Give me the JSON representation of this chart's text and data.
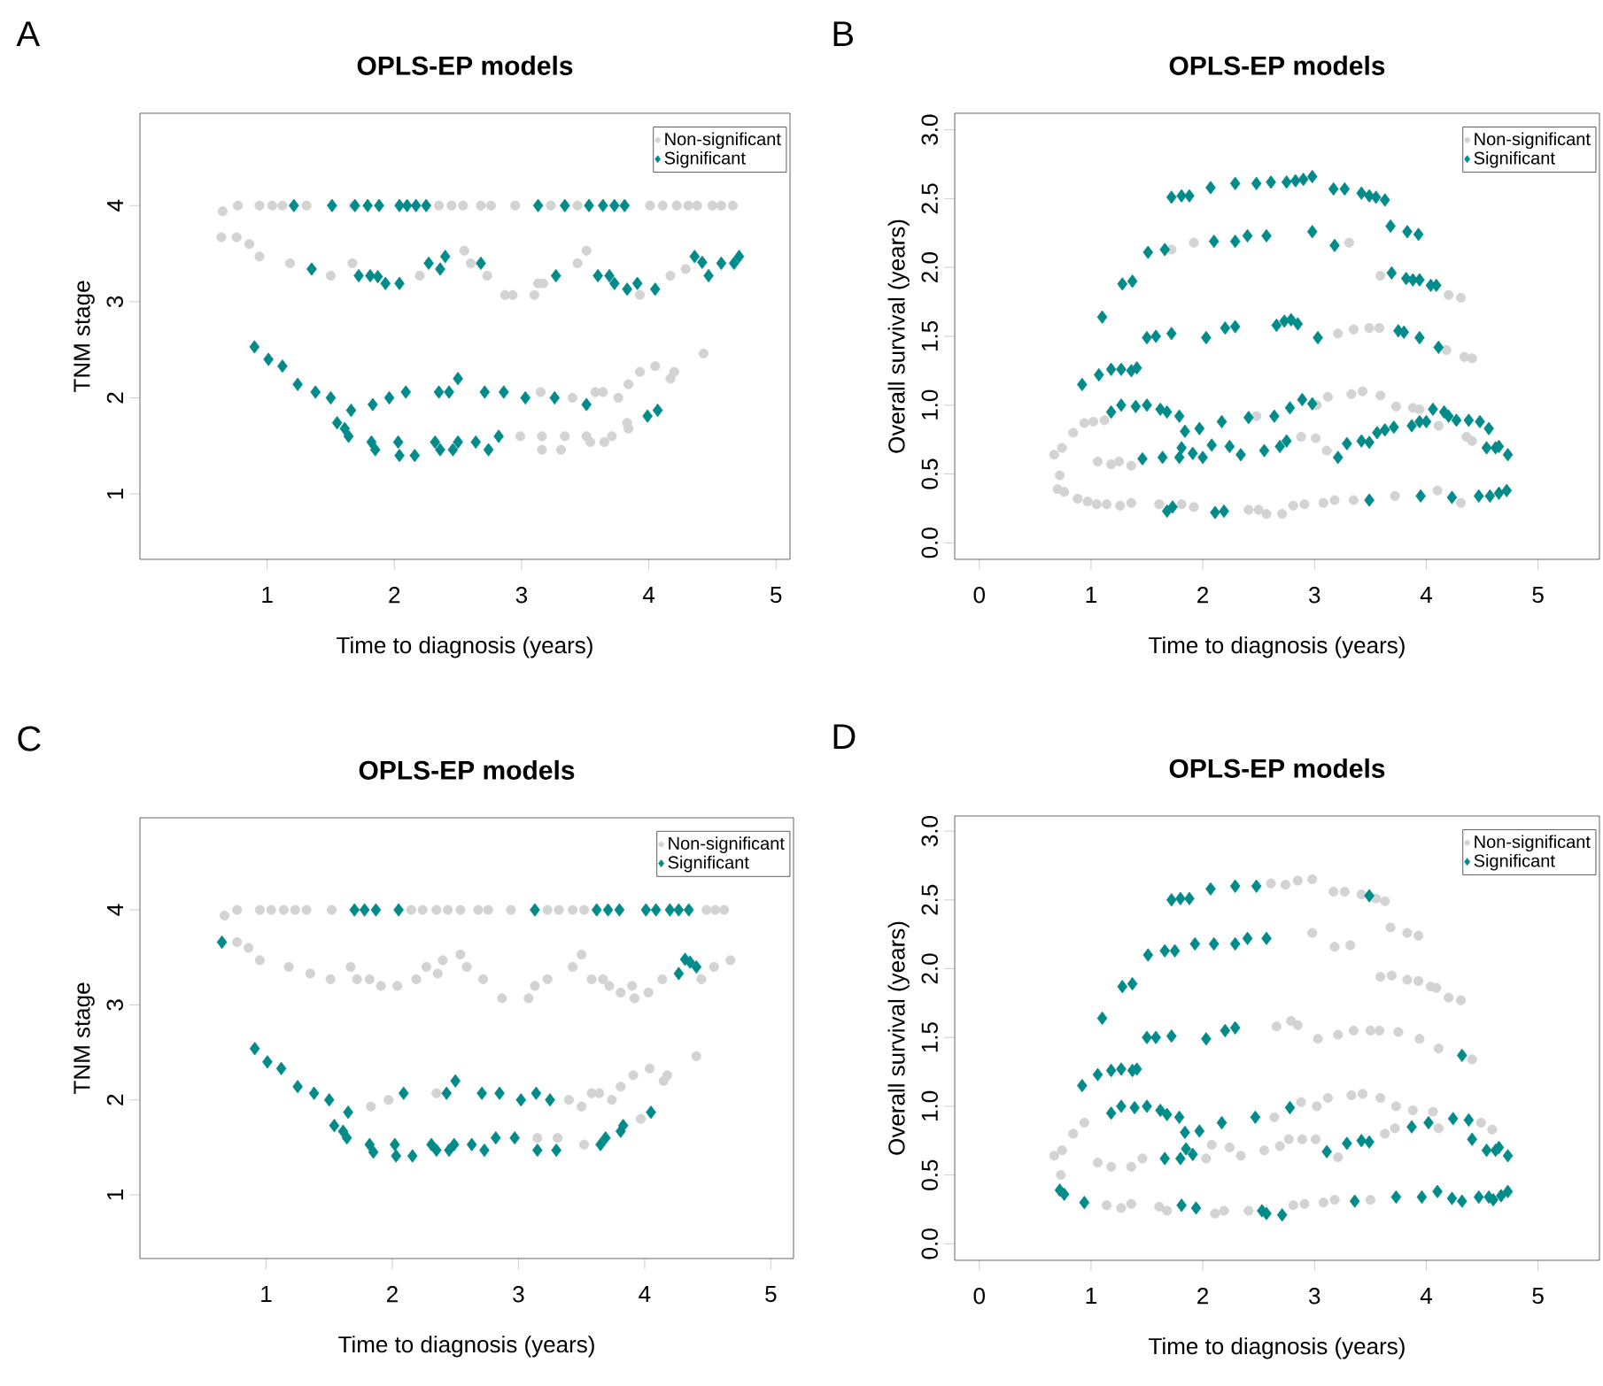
{
  "chart_data": [
    {
      "type": "scatter",
      "title": "OPLS-EP models",
      "xlabel": "Time to diagnosis (years)",
      "ylabel": "TNM stage",
      "annotations": [
        "A"
      ],
      "legend": "top right",
      "xlim": [
        0,
        5.11
      ],
      "ylim": [
        0.32,
        4.96
      ],
      "xticks": [
        1,
        2,
        3,
        4,
        5
      ],
      "yticks": [
        1,
        2,
        3,
        4
      ],
      "series": [
        {
          "name": "Non-significant",
          "color": "#d3d3d3",
          "marker": "circle",
          "x": [
            0.65,
            0.77,
            0.94,
            1.04,
            1.12,
            1.31,
            1.68,
            2.35,
            2.45,
            2.54,
            2.68,
            2.76,
            2.95,
            3.23,
            3.44,
            4.01,
            4.11,
            4.22,
            4.31,
            4.38,
            4.5,
            4.57,
            4.66,
            0.64,
            0.76,
            0.86,
            0.94,
            1.18,
            1.5,
            1.67,
            2.2,
            2.55,
            2.6,
            2.73,
            2.87,
            2.93,
            3.1,
            3.13,
            3.17,
            3.44,
            3.51,
            3.93,
            4.17,
            4.29,
            2.99,
            3.15,
            3.16,
            3.16,
            3.31,
            3.34,
            3.4,
            3.51,
            3.54,
            3.58,
            3.64,
            3.65,
            3.71,
            3.76,
            3.84,
            3.84,
            3.83,
            3.93,
            4.05,
            4.17,
            4.2,
            4.43
          ],
          "values": [
            3.94,
            4,
            4,
            4,
            4,
            4,
            4,
            4,
            4,
            4,
            4,
            4,
            4,
            4,
            4,
            4,
            4,
            4,
            4,
            4,
            4,
            4,
            4,
            3.67,
            3.67,
            3.6,
            3.47,
            3.4,
            3.27,
            3.4,
            3.27,
            3.53,
            3.4,
            3.27,
            3.07,
            3.07,
            3.07,
            3.19,
            3.19,
            3.4,
            3.53,
            3.07,
            3.27,
            3.34,
            1.6,
            2.06,
            1.6,
            1.46,
            1.46,
            1.6,
            2.0,
            1.6,
            1.54,
            2.06,
            2.06,
            1.54,
            1.6,
            2.0,
            2.14,
            1.68,
            1.74,
            2.27,
            2.33,
            2.2,
            2.27,
            2.46
          ]
        },
        {
          "name": "Significant",
          "color": "#008b8b",
          "marker": "diamond",
          "x": [
            1.21,
            1.51,
            1.69,
            1.79,
            1.88,
            2.04,
            2.1,
            2.17,
            2.25,
            3.13,
            3.34,
            3.53,
            3.64,
            3.73,
            3.81,
            1.35,
            1.72,
            1.81,
            1.87,
            1.93,
            2.04,
            2.27,
            2.36,
            2.4,
            2.68,
            3.27,
            3.6,
            3.69,
            3.73,
            3.83,
            3.91,
            4.05,
            4.36,
            4.42,
            4.47,
            4.57,
            4.67,
            4.71,
            0.9,
            1.01,
            1.12,
            1.24,
            1.38,
            1.5,
            1.55,
            1.61,
            1.64,
            1.66,
            1.82,
            1.83,
            1.85,
            1.96,
            2.03,
            2.04,
            2.09,
            2.16,
            2.32,
            2.35,
            2.36,
            2.43,
            2.46,
            2.5,
            2.5,
            2.64,
            2.71,
            2.74,
            2.82,
            2.86,
            3.03,
            3.26,
            3.51,
            3.99,
            4.07
          ],
          "values": [
            4,
            4,
            4,
            4,
            4,
            4,
            4,
            4,
            4,
            4,
            4,
            4,
            4,
            4,
            4,
            3.34,
            3.27,
            3.27,
            3.26,
            3.19,
            3.19,
            3.4,
            3.34,
            3.47,
            3.4,
            3.27,
            3.27,
            3.27,
            3.19,
            3.13,
            3.19,
            3.13,
            3.47,
            3.41,
            3.27,
            3.4,
            3.4,
            3.47,
            2.53,
            2.4,
            2.33,
            2.14,
            2.06,
            2.0,
            1.74,
            1.68,
            1.6,
            1.87,
            1.54,
            1.93,
            1.46,
            2.0,
            1.54,
            1.4,
            2.06,
            1.4,
            1.54,
            2.06,
            1.46,
            2.06,
            1.46,
            2.2,
            1.54,
            1.54,
            2.06,
            1.46,
            1.6,
            2.06,
            2.0,
            2.0,
            1.93,
            1.81,
            1.87
          ]
        }
      ]
    },
    {
      "type": "scatter",
      "title": "OPLS-EP models",
      "xlabel": "Time to diagnosis (years)",
      "ylabel": "Overall survival (years)",
      "annotations": [
        "B"
      ],
      "legend": "top right",
      "xlim": [
        -0.22,
        5.55
      ],
      "ylim": [
        -0.12,
        3.12
      ],
      "xticks": [
        0,
        1,
        2,
        3,
        4,
        5
      ],
      "yticks": [
        {
          "value": 0,
          "label": "0.0"
        },
        {
          "value": 0.5,
          "label": "0.5"
        },
        {
          "value": 1,
          "label": "1.0"
        },
        {
          "value": 1.5,
          "label": "1.5"
        },
        {
          "value": 2,
          "label": "2.0"
        },
        {
          "value": 2.5,
          "label": "2.5"
        },
        {
          "value": 3,
          "label": "3.0"
        }
      ],
      "series": [
        {
          "name": "Non-significant",
          "color": "#d3d3d3",
          "marker": "circle",
          "x": [
            1.72,
            1.92,
            3.31,
            3.59,
            4.2,
            4.31,
            3.21,
            3.35,
            3.49,
            3.58,
            4.18,
            4.34,
            4.41,
            0.67,
            0.74,
            0.72,
            0.7,
            0.76,
            0.84,
            0.94,
            1.02,
            1.12,
            1.06,
            1.18,
            1.25,
            1.36,
            0.88,
            0.97,
            1.05,
            1.14,
            1.26,
            1.36,
            1.61,
            1.81,
            1.92,
            2.41,
            2.5,
            2.57,
            2.71,
            2.81,
            2.91,
            3.08,
            3.18,
            3.35,
            3.72,
            4.1,
            4.31,
            2.48,
            2.88,
            3.01,
            3.02,
            3.11,
            3.12,
            3.33,
            3.43,
            3.59,
            3.73,
            3.88,
            3.94,
            4.11,
            4.36,
            4.41
          ],
          "values": [
            2.13,
            2.18,
            2.18,
            1.94,
            1.8,
            1.78,
            1.52,
            1.55,
            1.56,
            1.56,
            1.4,
            1.35,
            1.34,
            0.64,
            0.69,
            0.49,
            0.39,
            0.37,
            0.8,
            0.87,
            0.88,
            0.89,
            0.59,
            0.57,
            0.59,
            0.56,
            0.32,
            0.3,
            0.28,
            0.28,
            0.27,
            0.29,
            0.28,
            0.28,
            0.26,
            0.24,
            0.24,
            0.21,
            0.21,
            0.27,
            0.28,
            0.29,
            0.31,
            0.31,
            0.34,
            0.38,
            0.29,
            0.92,
            0.77,
            0.76,
            1.0,
            0.67,
            1.06,
            1.08,
            1.1,
            1.07,
            0.99,
            0.98,
            0.97,
            0.85,
            0.77,
            0.74
          ]
        },
        {
          "name": "Significant",
          "color": "#008b8b",
          "marker": "diamond",
          "x": [
            1.72,
            1.81,
            1.88,
            2.07,
            2.29,
            2.48,
            2.61,
            2.75,
            2.83,
            2.9,
            2.98,
            3.17,
            3.27,
            3.42,
            3.49,
            3.55,
            3.63,
            3.68,
            3.83,
            3.93,
            1.1,
            1.28,
            1.37,
            1.51,
            1.66,
            2.1,
            2.29,
            2.4,
            2.57,
            2.98,
            3.18,
            3.69,
            3.82,
            3.88,
            3.94,
            4.04,
            4.09,
            0.92,
            1.07,
            1.18,
            1.27,
            1.36,
            1.41,
            1.5,
            1.58,
            1.72,
            2.03,
            2.2,
            2.29,
            2.66,
            2.73,
            2.79,
            2.85,
            3.03,
            3.75,
            3.8,
            3.94,
            4.11,
            1.18,
            1.27,
            1.4,
            1.5,
            1.62,
            1.68,
            1.79,
            1.84,
            1.97,
            2.17,
            2.41,
            2.64,
            2.78,
            2.89,
            2.98,
            1.46,
            1.64,
            1.79,
            1.81,
            1.91,
            2.0,
            2.08,
            2.24,
            2.34,
            2.55,
            2.69,
            2.75,
            3.21,
            3.29,
            3.42,
            3.49,
            3.56,
            3.63,
            3.71,
            3.87,
            3.94,
            4.0,
            4.06,
            4.16,
            4.2,
            4.27,
            4.38,
            4.48,
            4.56,
            4.54,
            4.62,
            4.65,
            4.73,
            1.68,
            1.73,
            2.11,
            2.19,
            3.49,
            3.95,
            4.23,
            4.47,
            4.57,
            4.65,
            4.72
          ],
          "values": [
            2.51,
            2.52,
            2.52,
            2.58,
            2.61,
            2.61,
            2.62,
            2.62,
            2.63,
            2.64,
            2.66,
            2.57,
            2.57,
            2.54,
            2.52,
            2.51,
            2.49,
            2.3,
            2.26,
            2.24,
            1.64,
            1.88,
            1.9,
            2.11,
            2.13,
            2.19,
            2.19,
            2.23,
            2.23,
            2.26,
            2.16,
            1.96,
            1.92,
            1.91,
            1.91,
            1.87,
            1.87,
            1.15,
            1.22,
            1.26,
            1.26,
            1.25,
            1.27,
            1.49,
            1.5,
            1.52,
            1.49,
            1.56,
            1.57,
            1.58,
            1.61,
            1.62,
            1.59,
            1.49,
            1.54,
            1.53,
            1.49,
            1.42,
            0.95,
            1.0,
            0.99,
            1.0,
            0.97,
            0.95,
            0.92,
            0.81,
            0.83,
            0.88,
            0.91,
            0.92,
            0.98,
            1.04,
            1.01,
            0.61,
            0.62,
            0.62,
            0.69,
            0.65,
            0.62,
            0.71,
            0.7,
            0.64,
            0.67,
            0.7,
            0.74,
            0.62,
            0.72,
            0.74,
            0.73,
            0.8,
            0.82,
            0.84,
            0.85,
            0.88,
            0.88,
            0.97,
            0.95,
            0.92,
            0.89,
            0.89,
            0.88,
            0.83,
            0.69,
            0.69,
            0.7,
            0.64,
            0.23,
            0.26,
            0.22,
            0.23,
            0.31,
            0.34,
            0.33,
            0.34,
            0.34,
            0.36,
            0.38
          ]
        }
      ]
    },
    {
      "type": "scatter",
      "title": "OPLS-EP models",
      "xlabel": "Time to diagnosis (years)",
      "ylabel": "TNM stage",
      "annotations": [
        "C"
      ],
      "legend": "top right",
      "xlim": [
        0,
        5.18
      ],
      "ylim": [
        0.33,
        4.97
      ],
      "xticks": [
        1,
        2,
        3,
        4,
        5
      ],
      "yticks": [
        1,
        2,
        3,
        4
      ],
      "series": [
        {
          "name": "Non-significant",
          "color": "#d3d3d3",
          "marker": "circle",
          "x": [
            0.67,
            0.77,
            0.95,
            1.04,
            1.14,
            1.23,
            1.32,
            1.52,
            2.15,
            2.24,
            2.35,
            2.44,
            2.54,
            2.68,
            2.76,
            2.94,
            3.23,
            3.32,
            3.43,
            3.52,
            4.49,
            4.56,
            4.63,
            0.77,
            0.86,
            0.95,
            1.18,
            1.35,
            1.51,
            1.67,
            1.72,
            1.82,
            1.91,
            2.04,
            2.19,
            2.27,
            2.36,
            2.4,
            2.54,
            2.59,
            2.72,
            2.87,
            3.08,
            3.13,
            3.23,
            3.43,
            3.5,
            3.58,
            3.67,
            3.72,
            3.81,
            3.9,
            3.92,
            4.03,
            4.14,
            4.45,
            4.55,
            4.68,
            1.83,
            1.97,
            2.35,
            3.15,
            3.31,
            3.4,
            3.5,
            3.52,
            3.58,
            3.64,
            3.74,
            3.81,
            3.91,
            3.97,
            4.04,
            4.15,
            4.18,
            4.41
          ],
          "values": [
            3.94,
            4,
            4,
            4,
            4,
            4,
            4,
            4,
            4,
            4,
            4,
            4,
            4,
            4,
            4,
            4,
            4,
            4,
            4,
            4,
            4,
            4,
            4,
            3.66,
            3.6,
            3.47,
            3.4,
            3.33,
            3.27,
            3.4,
            3.27,
            3.27,
            3.2,
            3.2,
            3.27,
            3.4,
            3.33,
            3.47,
            3.53,
            3.4,
            3.27,
            3.07,
            3.07,
            3.2,
            3.27,
            3.4,
            3.53,
            3.27,
            3.27,
            3.2,
            3.13,
            3.2,
            3.07,
            3.13,
            3.27,
            3.27,
            3.4,
            3.47,
            1.93,
            2.0,
            2.07,
            1.6,
            1.6,
            2.0,
            1.93,
            1.53,
            2.07,
            2.07,
            2.0,
            2.14,
            2.26,
            1.8,
            2.33,
            2.2,
            2.26,
            2.46
          ]
        },
        {
          "name": "Significant",
          "color": "#008b8b",
          "marker": "diamond",
          "x": [
            1.7,
            1.78,
            1.87,
            2.05,
            3.13,
            3.62,
            3.71,
            3.8,
            4.01,
            4.09,
            4.2,
            4.27,
            4.35,
            0.65,
            4.27,
            4.32,
            4.36,
            4.41,
            0.91,
            1.01,
            1.12,
            1.25,
            1.38,
            1.5,
            1.54,
            1.61,
            1.64,
            1.65,
            1.82,
            1.85,
            2.02,
            2.03,
            2.09,
            2.16,
            2.31,
            2.35,
            2.43,
            2.45,
            2.49,
            2.5,
            2.63,
            2.71,
            2.73,
            2.82,
            2.85,
            2.97,
            3.02,
            3.14,
            3.15,
            3.25,
            3.3,
            3.65,
            3.69,
            3.81,
            3.83,
            4.05
          ],
          "values": [
            4,
            4,
            4,
            4,
            4,
            4,
            4,
            4,
            4,
            4,
            4,
            4,
            4,
            3.66,
            3.33,
            3.48,
            3.45,
            3.4,
            2.54,
            2.4,
            2.33,
            2.14,
            2.07,
            2.0,
            1.73,
            1.67,
            1.6,
            1.87,
            1.53,
            1.45,
            1.53,
            1.41,
            2.07,
            1.41,
            1.53,
            1.47,
            2.07,
            1.47,
            1.53,
            2.2,
            1.53,
            2.07,
            1.47,
            1.6,
            2.07,
            1.6,
            2.0,
            2.07,
            1.47,
            2.0,
            1.47,
            1.53,
            1.6,
            1.67,
            1.73,
            1.87
          ]
        }
      ]
    },
    {
      "type": "scatter",
      "title": "OPLS-EP models",
      "xlabel": "Time to diagnosis (years)",
      "ylabel": "Overall survival (years)",
      "annotations": [
        "D"
      ],
      "legend": "top right",
      "xlim": [
        -0.22,
        5.55
      ],
      "ylim": [
        -0.12,
        3.11
      ],
      "xticks": [
        0,
        1,
        2,
        3,
        4,
        5
      ],
      "yticks": [
        {
          "value": 0,
          "label": "0.0"
        },
        {
          "value": 0.5,
          "label": "0.5"
        },
        {
          "value": 1,
          "label": "1.0"
        },
        {
          "value": 1.5,
          "label": "1.5"
        },
        {
          "value": 2,
          "label": "2.0"
        },
        {
          "value": 2.5,
          "label": "2.5"
        },
        {
          "value": 3,
          "label": "3.0"
        }
      ],
      "series": [
        {
          "name": "Non-significant",
          "color": "#d3d3d3",
          "marker": "circle",
          "x": [
            2.61,
            2.74,
            2.85,
            2.98,
            3.17,
            3.27,
            3.42,
            3.55,
            3.63,
            3.68,
            3.83,
            3.93,
            2.98,
            3.18,
            3.32,
            3.59,
            3.69,
            3.83,
            3.93,
            4.04,
            4.09,
            4.2,
            4.31,
            2.66,
            2.79,
            2.85,
            3.03,
            3.21,
            3.35,
            3.5,
            3.58,
            3.75,
            3.94,
            4.11,
            4.41,
            0.67,
            0.74,
            0.73,
            0.84,
            0.94,
            1.06,
            1.18,
            1.36,
            1.46,
            1.14,
            1.27,
            1.36,
            1.61,
            1.68,
            2.11,
            2.19,
            2.41,
            2.81,
            2.91,
            3.08,
            3.18,
            3.5,
            2.03,
            2.08,
            2.24,
            2.34,
            2.55,
            2.69,
            2.77,
            2.89,
            3.01,
            3.21,
            2.64,
            2.88,
            3.02,
            3.12,
            3.33,
            3.43,
            3.59,
            3.73,
            3.88,
            4.06,
            3.63,
            3.72,
            4.11,
            4.49,
            4.59
          ],
          "values": [
            2.62,
            2.61,
            2.64,
            2.65,
            2.56,
            2.56,
            2.54,
            2.51,
            2.49,
            2.3,
            2.26,
            2.24,
            2.26,
            2.16,
            2.17,
            1.94,
            1.95,
            1.92,
            1.91,
            1.87,
            1.86,
            1.79,
            1.77,
            1.58,
            1.62,
            1.59,
            1.49,
            1.52,
            1.55,
            1.55,
            1.55,
            1.54,
            1.49,
            1.42,
            1.34,
            0.64,
            0.68,
            0.5,
            0.8,
            0.88,
            0.59,
            0.56,
            0.56,
            0.62,
            0.28,
            0.26,
            0.29,
            0.27,
            0.24,
            0.22,
            0.24,
            0.24,
            0.28,
            0.29,
            0.3,
            0.32,
            0.32,
            0.62,
            0.72,
            0.7,
            0.64,
            0.68,
            0.71,
            0.76,
            0.76,
            0.76,
            0.63,
            0.92,
            1.03,
            1.0,
            1.06,
            1.08,
            1.09,
            1.06,
            1.0,
            0.97,
            0.96,
            0.8,
            0.84,
            0.84,
            0.88,
            0.83
          ]
        },
        {
          "name": "Significant",
          "color": "#008b8b",
          "marker": "diamond",
          "x": [
            1.72,
            1.8,
            1.88,
            2.07,
            2.29,
            2.48,
            3.49,
            1.1,
            1.28,
            1.37,
            1.51,
            1.66,
            1.75,
            1.93,
            2.1,
            2.29,
            2.4,
            2.57,
            0.92,
            1.06,
            1.18,
            1.27,
            1.37,
            1.41,
            1.5,
            1.58,
            1.72,
            2.03,
            2.2,
            2.29,
            4.32,
            1.18,
            1.27,
            1.39,
            1.5,
            1.62,
            1.68,
            1.79,
            1.84,
            1.97,
            2.17,
            2.47,
            2.78,
            1.66,
            1.8,
            1.85,
            1.91,
            3.11,
            3.29,
            3.42,
            3.49,
            3.87,
            4.02,
            4.24,
            4.38,
            4.41,
            4.54,
            4.62,
            4.65,
            4.73,
            0.72,
            0.76,
            0.94,
            1.81,
            1.94,
            2.53,
            2.57,
            2.71,
            3.36,
            3.73,
            3.96,
            4.1,
            4.23,
            4.32,
            4.47,
            4.56,
            4.6,
            4.67,
            4.73
          ],
          "values": [
            2.5,
            2.51,
            2.51,
            2.58,
            2.6,
            2.6,
            2.53,
            1.64,
            1.87,
            1.89,
            2.1,
            2.13,
            2.13,
            2.18,
            2.18,
            2.18,
            2.22,
            2.22,
            1.15,
            1.23,
            1.26,
            1.27,
            1.26,
            1.27,
            1.5,
            1.5,
            1.51,
            1.49,
            1.55,
            1.57,
            1.37,
            0.95,
            1.0,
            0.99,
            1.0,
            0.97,
            0.94,
            0.92,
            0.81,
            0.82,
            0.88,
            0.92,
            0.99,
            0.62,
            0.62,
            0.69,
            0.65,
            0.67,
            0.73,
            0.75,
            0.74,
            0.85,
            0.88,
            0.91,
            0.9,
            0.76,
            0.68,
            0.68,
            0.7,
            0.64,
            0.39,
            0.36,
            0.3,
            0.28,
            0.26,
            0.24,
            0.22,
            0.21,
            0.31,
            0.34,
            0.34,
            0.38,
            0.33,
            0.31,
            0.34,
            0.34,
            0.32,
            0.35,
            0.38
          ]
        }
      ]
    }
  ]
}
